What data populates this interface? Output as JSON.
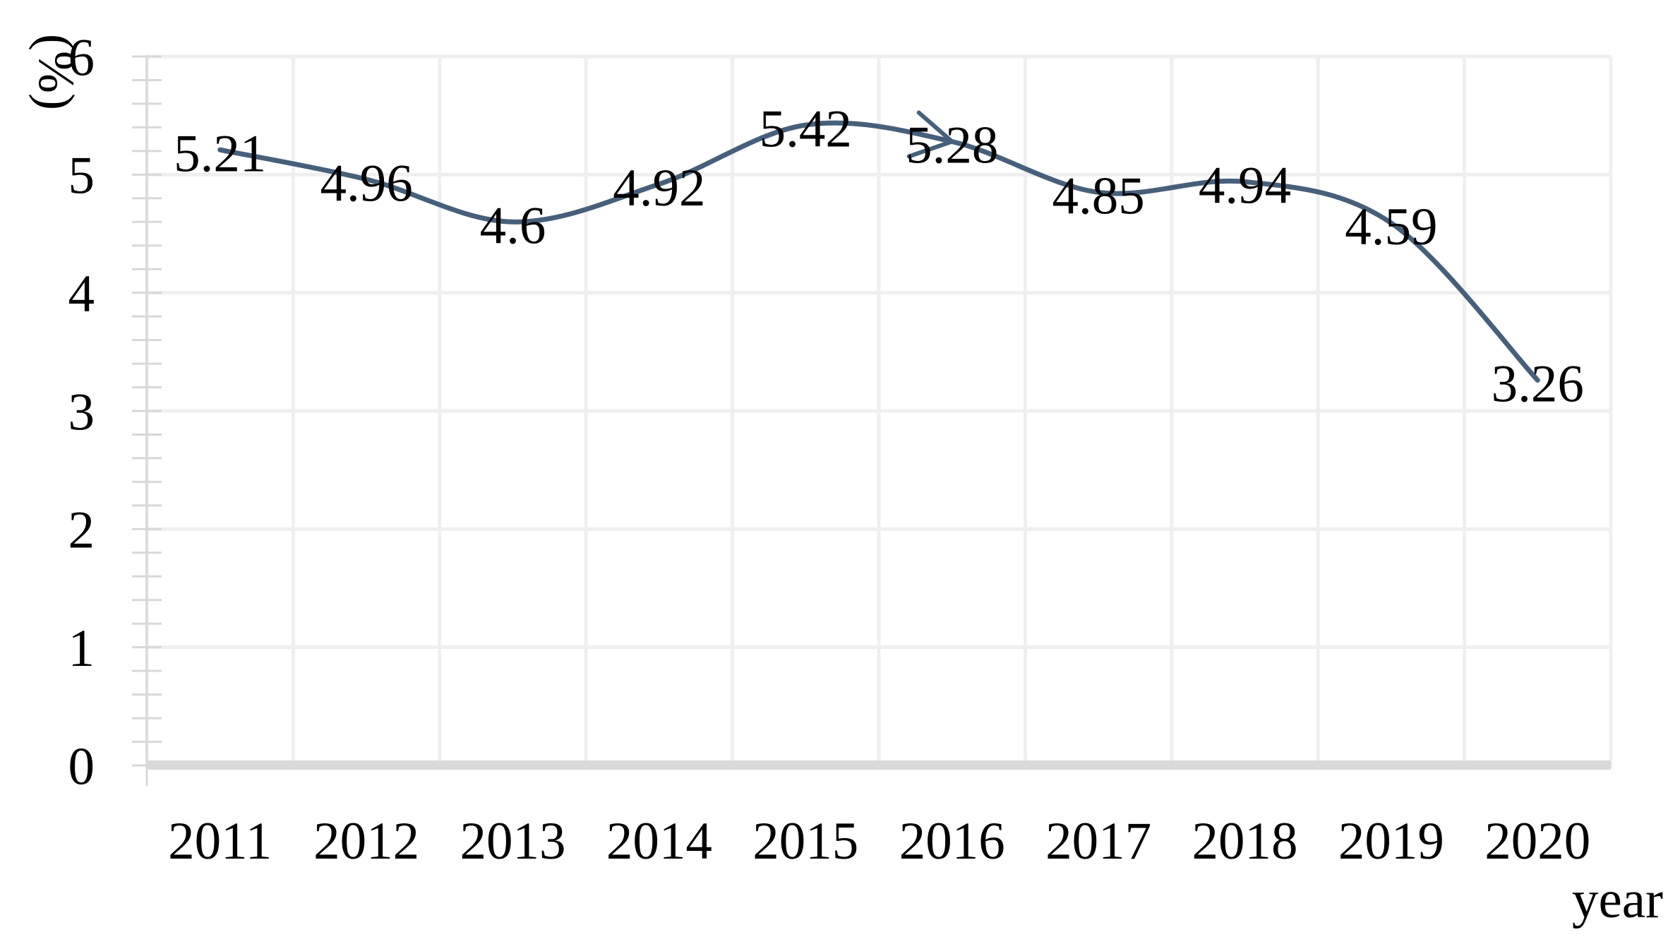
{
  "chart_data": {
    "type": "line",
    "title": "",
    "xlabel": "year",
    "ylabel": "(%)",
    "categories": [
      "2011",
      "2012",
      "2013",
      "2014",
      "2015",
      "2016",
      "2017",
      "2018",
      "2019",
      "2020"
    ],
    "series": [
      {
        "values": [
          5.21,
          4.96,
          4.6,
          4.92,
          5.42,
          5.28,
          4.85,
          4.94,
          4.59,
          3.26
        ],
        "point_labels": [
          "5.21",
          "4.96",
          "4.6",
          "4.92",
          "5.42",
          "5.28",
          "4.85",
          "4.94",
          "4.59",
          "3.26"
        ]
      }
    ],
    "ylim": [
      0,
      6
    ],
    "ytick_labels": [
      "0",
      "1",
      "2",
      "3",
      "4",
      "5",
      "6"
    ],
    "ytick_step": 1,
    "yminor_step": 0.2,
    "grid": "on",
    "legend": "none",
    "smooth_line": true,
    "data_label_position": "center",
    "annotation": {
      "kind": "open-arrowhead",
      "target_category": "2016",
      "target_value": 5.28,
      "direction": "pointing-right"
    }
  },
  "colors": {
    "line": "#46607b",
    "gridline": "#efefef",
    "axis": "#d8d8d8",
    "axis_baseline": "#d9d9d9",
    "text": "#000000",
    "background": "#ffffff"
  }
}
